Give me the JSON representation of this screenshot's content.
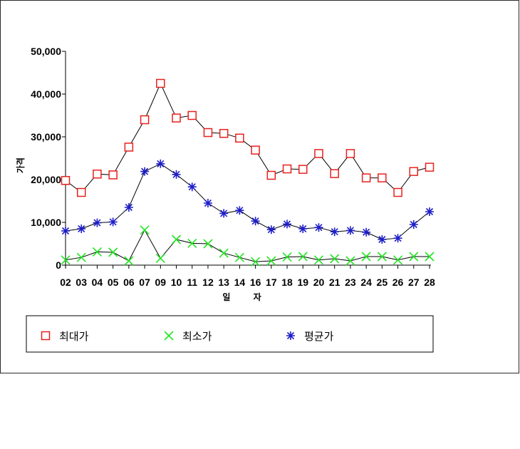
{
  "chart_data": {
    "type": "line",
    "title": "",
    "xlabel": "일 자",
    "ylabel": "가격",
    "ylim": [
      0,
      50000
    ],
    "yticks": [
      "0",
      "10,000",
      "20,000",
      "30,000",
      "40,000",
      "50,000"
    ],
    "categories": [
      "02",
      "03",
      "04",
      "05",
      "06",
      "07",
      "09",
      "10",
      "11",
      "12",
      "13",
      "14",
      "16",
      "17",
      "18",
      "19",
      "20",
      "21",
      "23",
      "24",
      "25",
      "26",
      "27",
      "28"
    ],
    "grid": false,
    "legend_position": "bottom",
    "series": [
      {
        "name": "최대가",
        "marker": "square",
        "color": "#e8201c",
        "values": [
          19800,
          17000,
          21300,
          21100,
          27600,
          34000,
          42500,
          34400,
          35000,
          31000,
          30800,
          29700,
          26900,
          21000,
          22500,
          22400,
          26100,
          21400,
          26100,
          20400,
          20400,
          17000,
          21900,
          22900
        ]
      },
      {
        "name": "최소가",
        "marker": "x",
        "color": "#22e622",
        "values": [
          1200,
          1800,
          3100,
          3000,
          1000,
          8200,
          1600,
          6000,
          5100,
          5000,
          2800,
          1800,
          800,
          1000,
          1900,
          2000,
          1200,
          1500,
          1000,
          2000,
          2000,
          1200,
          2000,
          2000
        ]
      },
      {
        "name": "평균가",
        "marker": "asterisk",
        "color": "#1e1ec8",
        "values": [
          8000,
          8500,
          9900,
          10100,
          13500,
          21900,
          23700,
          21200,
          18300,
          14500,
          12100,
          12800,
          10300,
          8300,
          9600,
          8500,
          8800,
          7800,
          8100,
          7700,
          6000,
          6300,
          9500,
          12500
        ]
      }
    ]
  }
}
